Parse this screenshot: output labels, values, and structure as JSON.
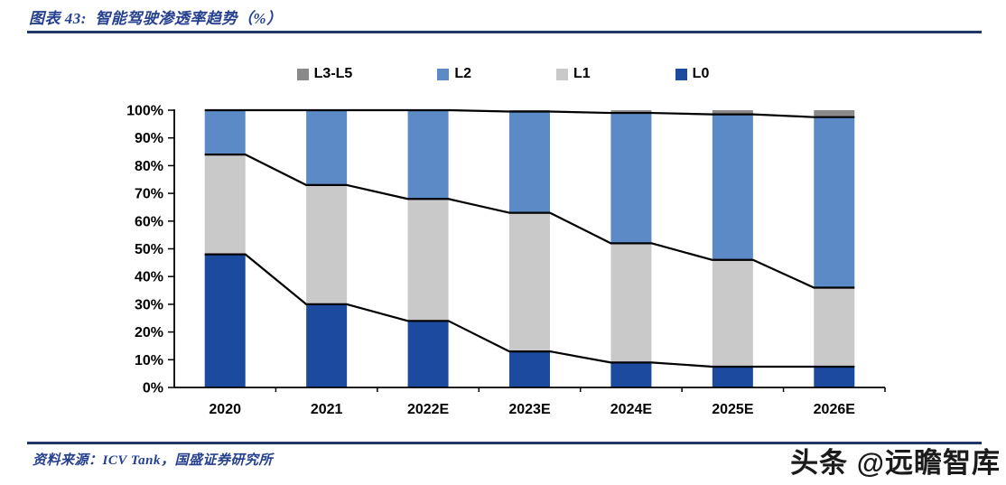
{
  "header": {
    "title": "图表 43:  智能驾驶渗透率趋势（%）"
  },
  "footer": {
    "source": "资料来源：ICV Tank，国盛证券研究所",
    "watermark": "头条 @远瞻智库"
  },
  "colors": {
    "accent_rule": "#1F3864",
    "accent_text": "#25408F",
    "axis": "#000000",
    "line_overlay": "#000000"
  },
  "chart_data": {
    "type": "bar",
    "stacked": true,
    "title": "智能驾驶渗透率趋势（%）",
    "xlabel": "",
    "ylabel": "",
    "ylim": [
      0,
      100
    ],
    "grid": false,
    "legend_position": "top",
    "legend_order": [
      "L3-L5",
      "L2",
      "L1",
      "L0"
    ],
    "categories": [
      "2020",
      "2021",
      "2022E",
      "2023E",
      "2024E",
      "2025E",
      "2026E"
    ],
    "series": [
      {
        "name": "L0",
        "color": "#1B4A9E",
        "values": [
          48,
          30,
          24,
          13,
          9,
          7.5,
          7.5
        ]
      },
      {
        "name": "L1",
        "color": "#C9C9C9",
        "values": [
          36,
          43,
          44,
          50,
          43,
          38.5,
          28.5
        ]
      },
      {
        "name": "L2",
        "color": "#5B8AC6",
        "values": [
          16,
          27,
          32,
          36.5,
          47,
          52.5,
          61.5
        ]
      },
      {
        "name": "L3-L5",
        "color": "#8A8A8A",
        "values": [
          0,
          0,
          0,
          0.5,
          1,
          1.5,
          2.5
        ]
      }
    ],
    "cumulative_boundary_lines": {
      "description": "black step lines tracing cumulative tops of L0, L0+L1, L0+L1+L2",
      "L0_top": [
        48,
        30,
        24,
        13,
        9,
        7.5,
        7.5
      ],
      "L1_top": [
        84,
        73,
        68,
        63,
        52,
        46,
        36
      ],
      "L2_top": [
        100,
        100,
        100,
        99.5,
        99,
        98.5,
        97.5
      ]
    },
    "y_tick_labels": [
      "0%",
      "10%",
      "20%",
      "30%",
      "40%",
      "50%",
      "60%",
      "70%",
      "80%",
      "90%",
      "100%"
    ]
  }
}
